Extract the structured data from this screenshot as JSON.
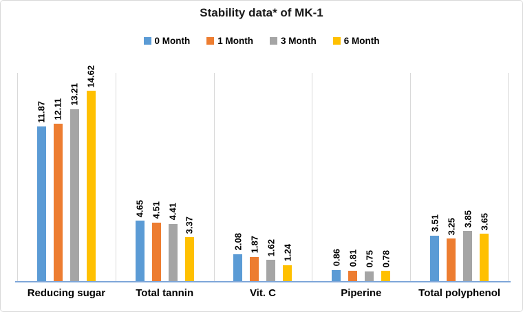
{
  "chart_data": {
    "type": "bar",
    "title": "Stability data* of MK-1",
    "categories": [
      "Reducing sugar",
      "Total tannin",
      "Vit. C",
      "Piperine",
      "Total polyphenol"
    ],
    "series": [
      {
        "name": "0 Month",
        "color": "#5B9BD5",
        "values": [
          11.87,
          4.65,
          2.08,
          0.86,
          3.51
        ]
      },
      {
        "name": "1 Month",
        "color": "#ED7D31",
        "values": [
          12.11,
          4.51,
          1.87,
          0.81,
          3.25
        ]
      },
      {
        "name": "3 Month",
        "color": "#A5A5A5",
        "values": [
          13.21,
          4.41,
          1.62,
          0.75,
          3.85
        ]
      },
      {
        "name": "6 Month",
        "color": "#FFC000",
        "values": [
          14.62,
          3.37,
          1.24,
          0.78,
          3.65
        ]
      }
    ],
    "ylim": [
      0,
      16
    ],
    "ylabel": "",
    "xlabel": "",
    "legend_position": "top",
    "grid": "vertical category separators only",
    "data_labels": "values above bars, rotated 90 degrees, two decimals"
  },
  "colors": {
    "axis_line": "#7EA6D9",
    "gridline": "#D9D9D9",
    "frame_border": "#D9D9D9",
    "label_text": "#000000",
    "title_text": "#1A1A1A"
  }
}
